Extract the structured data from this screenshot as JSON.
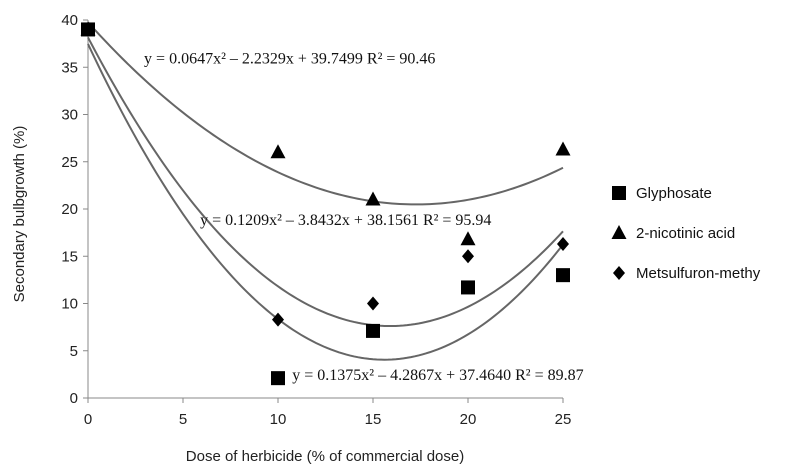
{
  "chart_data": {
    "type": "scatter",
    "title": "",
    "xlabel": "Dose of herbicide (% of commercial dose)",
    "ylabel": "Secondary bulbgrowth (%)",
    "xlim": [
      0,
      25
    ],
    "ylim": [
      0,
      40
    ],
    "xticks": [
      "0",
      "5",
      "10",
      "15",
      "20",
      "25"
    ],
    "yticks": [
      "0",
      "5",
      "10",
      "15",
      "20",
      "25",
      "30",
      "35",
      "40"
    ],
    "grid": false,
    "legend_position": "right",
    "series": [
      {
        "name": "Glyphosate",
        "marker": "square",
        "color": "#000000",
        "x": [
          0,
          10,
          15,
          20,
          25
        ],
        "y": [
          39.0,
          2.1,
          7.1,
          11.7,
          13.0
        ]
      },
      {
        "name": "2-nicotinic acid",
        "marker": "triangle",
        "color": "#000000",
        "x": [
          0,
          10,
          15,
          20,
          25
        ],
        "y": [
          39.0,
          26.0,
          21.0,
          16.8,
          26.3
        ]
      },
      {
        "name": "Metsulfuron-methy",
        "marker": "diamond",
        "color": "#000000",
        "x": [
          0,
          10,
          15,
          20,
          25
        ],
        "y": [
          39.0,
          8.3,
          10.0,
          15.0,
          16.3
        ]
      }
    ],
    "trendlines": [
      {
        "a": 0.0647,
        "b": -2.2329,
        "c": 39.7499,
        "color": "#666666"
      },
      {
        "a": 0.1209,
        "b": -3.8432,
        "c": 38.1561,
        "color": "#666666"
      },
      {
        "a": 0.1375,
        "b": -4.2867,
        "c": 37.464,
        "color": "#666666"
      }
    ],
    "annotations": [
      {
        "text": "y = 0.0647x² – 2.2329x + 39.7499  R² = 90.46",
        "x": 2.95,
        "y": 35.4
      },
      {
        "text": "y = 0.1209x² – 3.8432x + 38.1561  R² = 95.94",
        "x": 5.9,
        "y": 18.3
      },
      {
        "text": "y = 0.1375x² – 4.2867x + 37.4640  R² = 89.87",
        "x": 10.75,
        "y": 1.9
      }
    ]
  }
}
